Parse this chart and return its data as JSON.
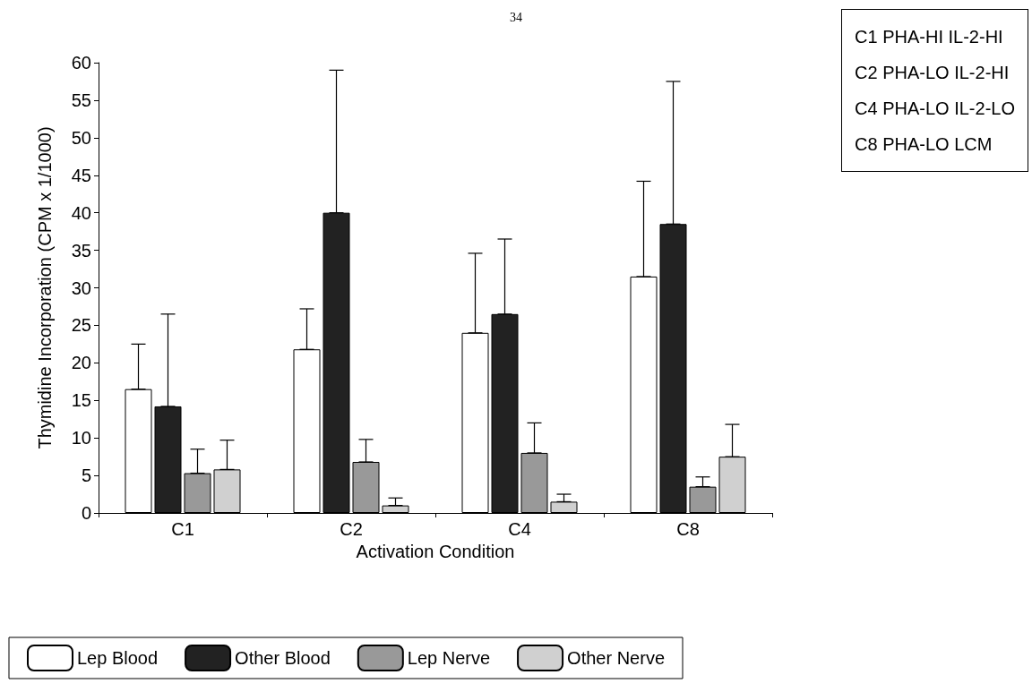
{
  "chart_data": {
    "type": "bar",
    "xlabel": "Activation Condition",
    "ylabel": "Thymidine Incorporation (CPM x 1/1000)",
    "categories": [
      "C1",
      "C2",
      "C4",
      "C8"
    ],
    "series": [
      {
        "name": "Lep Blood",
        "color": "#ffffff",
        "values": [
          16.5,
          21.8,
          24,
          31.5
        ],
        "errors": [
          [
            16.5,
            22.5
          ],
          [
            21.8,
            27.2
          ],
          [
            24,
            34.6
          ],
          [
            31.5,
            44.2
          ]
        ]
      },
      {
        "name": "Other Blood",
        "color": "#222222",
        "values": [
          14.2,
          40,
          26.5,
          38.5
        ],
        "errors": [
          [
            14.2,
            26.5
          ],
          [
            40,
            59
          ],
          [
            26.5,
            36.5
          ],
          [
            38.5,
            57.5
          ]
        ]
      },
      {
        "name": "Lep Nerve",
        "color": "#999999",
        "values": [
          5.3,
          6.8,
          8,
          3.5
        ],
        "errors": [
          [
            5.3,
            8.5
          ],
          [
            6.8,
            9.8
          ],
          [
            8,
            12
          ],
          [
            3.5,
            4.8
          ]
        ]
      },
      {
        "name": "Other Nerve",
        "color": "#d0d0d0",
        "values": [
          5.8,
          1,
          1.5,
          7.5
        ],
        "errors": [
          [
            5.8,
            9.7
          ],
          [
            1,
            2
          ],
          [
            1.5,
            2.5
          ],
          [
            7.5,
            11.8
          ]
        ]
      }
    ],
    "ylim": [
      0,
      60
    ],
    "yticks": [
      0,
      5,
      10,
      15,
      20,
      25,
      30,
      35,
      40,
      45,
      50,
      55,
      60
    ],
    "grid": false,
    "legend": "bottom",
    "annotations": [
      "34",
      "C1 PHA-HI IL-2-HI",
      "C2 PHA-LO IL-2-HI",
      "C4 PHA-LO IL-2-LO",
      "C8 PHA-LO LCM"
    ]
  }
}
